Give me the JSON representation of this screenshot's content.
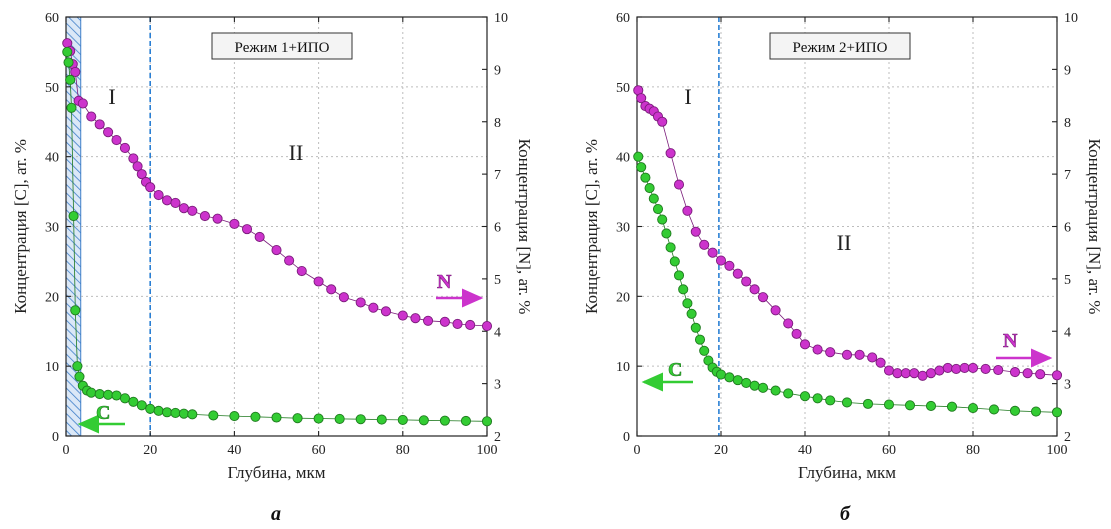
{
  "xlabel": "Глубина, мкм",
  "ylabel_left": "Концентрация [C], ат. %",
  "ylabel_right": "Концентрация [N], ат. %",
  "colors": {
    "N": "#cc33cc",
    "C": "#33cc33",
    "N_edge": "#7a1c7a",
    "C_edge": "#1f7a1f",
    "divider": "#2a7fd4"
  },
  "chart_data": [
    {
      "type": "scatter",
      "panel_label": "а",
      "mode_label": "Режим 1+ИПО",
      "zone_labels": [
        "I",
        "II"
      ],
      "xlim": [
        0,
        100
      ],
      "ylim_left": [
        0,
        60
      ],
      "ylim_right": [
        2,
        10
      ],
      "x_ticks": [
        0,
        20,
        40,
        60,
        80,
        100
      ],
      "y_left_ticks": [
        0,
        10,
        20,
        30,
        40,
        50,
        60
      ],
      "y_right_ticks": [
        2,
        3,
        4,
        5,
        6,
        7,
        8,
        9,
        10
      ],
      "grid": true,
      "divider_x": 20,
      "hatched_zone": [
        0,
        3.5
      ],
      "series": [
        {
          "name": "N",
          "axis": "right",
          "arrow": "right",
          "x": [
            0.3,
            1,
            1.6,
            2.2,
            3,
            4,
            6,
            8,
            10,
            12,
            14,
            16,
            17,
            18,
            19,
            20,
            22,
            24,
            26,
            28,
            30,
            33,
            36,
            40,
            43,
            46,
            50,
            53,
            56,
            60,
            63,
            66,
            70,
            73,
            76,
            80,
            83,
            86,
            90,
            93,
            96,
            100
          ],
          "y": [
            9.5,
            9.35,
            9.1,
            8.95,
            8.4,
            8.35,
            8.1,
            7.95,
            7.8,
            7.65,
            7.5,
            7.3,
            7.15,
            7.0,
            6.85,
            6.75,
            6.6,
            6.5,
            6.45,
            6.35,
            6.3,
            6.2,
            6.15,
            6.05,
            5.95,
            5.8,
            5.55,
            5.35,
            5.15,
            4.95,
            4.8,
            4.65,
            4.55,
            4.45,
            4.38,
            4.3,
            4.25,
            4.2,
            4.18,
            4.14,
            4.12,
            4.1
          ]
        },
        {
          "name": "C",
          "axis": "left",
          "arrow": "left",
          "x": [
            0.3,
            0.6,
            1,
            1.3,
            1.8,
            2.2,
            2.7,
            3.2,
            4,
            5,
            6,
            8,
            10,
            12,
            14,
            16,
            18,
            20,
            22,
            24,
            26,
            28,
            30,
            35,
            40,
            45,
            50,
            55,
            60,
            65,
            70,
            75,
            80,
            85,
            90,
            95,
            100
          ],
          "y": [
            55,
            53.5,
            51,
            47,
            31.5,
            18,
            10,
            8.5,
            7.2,
            6.5,
            6.2,
            6.0,
            5.9,
            5.8,
            5.4,
            4.9,
            4.4,
            3.9,
            3.6,
            3.4,
            3.3,
            3.2,
            3.1,
            2.95,
            2.85,
            2.75,
            2.65,
            2.55,
            2.5,
            2.45,
            2.4,
            2.35,
            2.3,
            2.25,
            2.2,
            2.15,
            2.1
          ]
        }
      ]
    },
    {
      "type": "scatter",
      "panel_label": "б",
      "mode_label": "Режим 2+ИПО",
      "zone_labels": [
        "I",
        "II"
      ],
      "xlim": [
        0,
        100
      ],
      "ylim_left": [
        0,
        60
      ],
      "ylim_right": [
        2,
        10
      ],
      "x_ticks": [
        0,
        20,
        40,
        60,
        80,
        100
      ],
      "y_left_ticks": [
        0,
        10,
        20,
        30,
        40,
        50,
        60
      ],
      "y_right_ticks": [
        2,
        3,
        4,
        5,
        6,
        7,
        8,
        9,
        10
      ],
      "grid": true,
      "divider_x": 19.5,
      "series": [
        {
          "name": "N",
          "axis": "right",
          "arrow": "right",
          "x": [
            0.3,
            1,
            2,
            3,
            4,
            5,
            6,
            8,
            10,
            12,
            14,
            16,
            18,
            20,
            22,
            24,
            26,
            28,
            30,
            33,
            36,
            38,
            40,
            43,
            46,
            50,
            53,
            56,
            58,
            60,
            62,
            64,
            66,
            68,
            70,
            72,
            74,
            76,
            78,
            80,
            83,
            86,
            90,
            93,
            96,
            100
          ],
          "y": [
            8.6,
            8.45,
            8.3,
            8.25,
            8.2,
            8.1,
            8.0,
            7.4,
            6.8,
            6.3,
            5.9,
            5.65,
            5.5,
            5.35,
            5.25,
            5.1,
            4.95,
            4.8,
            4.65,
            4.4,
            4.15,
            3.95,
            3.75,
            3.65,
            3.6,
            3.55,
            3.55,
            3.5,
            3.4,
            3.25,
            3.2,
            3.2,
            3.2,
            3.15,
            3.2,
            3.25,
            3.3,
            3.28,
            3.3,
            3.3,
            3.28,
            3.26,
            3.22,
            3.2,
            3.18,
            3.16
          ]
        },
        {
          "name": "C",
          "axis": "left",
          "arrow": "left",
          "x": [
            0.3,
            1,
            2,
            3,
            4,
            5,
            6,
            7,
            8,
            9,
            10,
            11,
            12,
            13,
            14,
            15,
            16,
            17,
            18,
            19,
            20,
            22,
            24,
            26,
            28,
            30,
            33,
            36,
            40,
            43,
            46,
            50,
            55,
            60,
            65,
            70,
            75,
            80,
            85,
            90,
            95,
            100
          ],
          "y": [
            40,
            38.5,
            37,
            35.5,
            34,
            32.5,
            31,
            29,
            27,
            25,
            23,
            21,
            19,
            17.5,
            15.5,
            13.8,
            12.2,
            10.8,
            9.8,
            9.2,
            8.8,
            8.4,
            8.0,
            7.6,
            7.2,
            6.9,
            6.5,
            6.1,
            5.7,
            5.4,
            5.1,
            4.8,
            4.6,
            4.5,
            4.4,
            4.3,
            4.2,
            4.0,
            3.8,
            3.6,
            3.5,
            3.4
          ]
        }
      ]
    }
  ]
}
